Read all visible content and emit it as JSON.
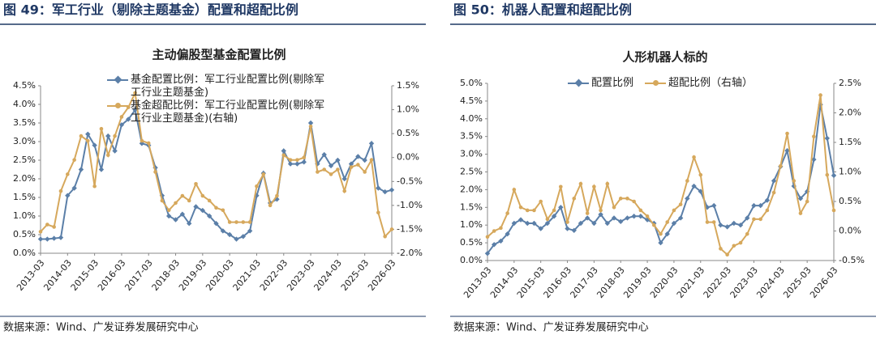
{
  "chart_data": [
    {
      "type": "line",
      "figure_title": "图 49：军工行业（剔除主题基金）配置和超配比例",
      "title": "主动偏股型基金配置比例",
      "source": "数据来源：Wind、广发证券发展研究中心",
      "categories": [
        "2013-03",
        null,
        null,
        null,
        "2014-03",
        null,
        null,
        null,
        "2015-03",
        null,
        null,
        null,
        "2016-03",
        null,
        null,
        null,
        "2017-03",
        null,
        null,
        null,
        "2018-03",
        null,
        null,
        null,
        "2019-03",
        null,
        null,
        null,
        "2020-03",
        null,
        null,
        null,
        "2021-03",
        null,
        null,
        null,
        "2022-03",
        null,
        null,
        null,
        "2023-03",
        null,
        null,
        null,
        "2024-03",
        null,
        null,
        null,
        "2025-03",
        null,
        null,
        null,
        "2026-03"
      ],
      "series": [
        {
          "name": "基金配置比例：军工行业配置比例(剔除军工行业主题基金)",
          "color": "#5b7fa8",
          "marker": "diamond",
          "values": [
            0.38,
            0.38,
            0.4,
            0.42,
            1.55,
            1.75,
            2.25,
            3.2,
            2.9,
            2.25,
            3.15,
            2.75,
            3.45,
            3.6,
            3.85,
            2.95,
            2.9,
            2.3,
            1.55,
            1.0,
            0.9,
            1.05,
            0.8,
            1.25,
            1.15,
            1.0,
            0.8,
            0.6,
            0.5,
            0.38,
            0.45,
            0.6,
            1.55,
            2.15,
            1.35,
            1.45,
            2.75,
            2.4,
            2.4,
            2.45,
            3.5,
            2.4,
            2.65,
            2.35,
            2.5,
            2.0,
            2.4,
            2.6,
            2.5,
            2.95,
            1.75,
            1.65,
            1.7
          ]
        },
        {
          "name": "基金超配比例：军工行业配置比例(剔除军工行业主题基金)(右轴)",
          "color": "#d6a85c",
          "marker": "circle",
          "axis": "y2",
          "values": [
            -1.55,
            -1.4,
            -1.45,
            -0.7,
            -0.35,
            -0.05,
            0.45,
            0.35,
            -0.6,
            0.6,
            0.05,
            0.45,
            0.85,
            1.05,
            1.35,
            0.35,
            0.3,
            -0.3,
            -0.9,
            -1.1,
            -0.95,
            -0.8,
            -0.9,
            -0.55,
            -0.8,
            -0.9,
            -1.05,
            -1.1,
            -1.35,
            -1.35,
            -1.35,
            -1.35,
            -0.6,
            -0.35,
            -1.0,
            -0.8,
            0.05,
            -0.05,
            -0.05,
            0.0,
            0.65,
            -0.3,
            -0.25,
            -0.35,
            -0.25,
            -0.7,
            -0.2,
            -0.15,
            -0.3,
            -0.05,
            -1.15,
            -1.65,
            -1.5
          ]
        }
      ],
      "ylim": [
        0,
        4.5
      ],
      "yticks": [
        {
          "value": 0,
          "label": "0.0%"
        },
        {
          "value": 0.5,
          "label": "0.5%"
        },
        {
          "value": 1,
          "label": "1.0%"
        },
        {
          "value": 1.5,
          "label": "1.5%"
        },
        {
          "value": 2,
          "label": "2.0%"
        },
        {
          "value": 2.5,
          "label": "2.5%"
        },
        {
          "value": 3,
          "label": "3.0%"
        },
        {
          "value": 3.5,
          "label": "3.5%"
        },
        {
          "value": 4,
          "label": "4.0%"
        },
        {
          "value": 4.5,
          "label": "4.5%"
        }
      ],
      "y2lim": [
        -2,
        1.5
      ],
      "y2ticks": [
        {
          "value": -2,
          "label": "-2.0%"
        },
        {
          "value": -1.5,
          "label": "-1.5%"
        },
        {
          "value": -1,
          "label": "-1.0%"
        },
        {
          "value": -0.5,
          "label": "-0.5%"
        },
        {
          "value": 0,
          "label": "0.0%"
        },
        {
          "value": 0.5,
          "label": "0.5%"
        },
        {
          "value": 1,
          "label": "1.0%"
        },
        {
          "value": 1.5,
          "label": "1.5%"
        }
      ],
      "legend": "upper-left-stacked"
    },
    {
      "type": "line",
      "figure_title": "图 50：机器人配置和超配比例",
      "title": "人形机器人标的",
      "source": "数据来源：Wind、广发证券发展研究中心",
      "categories": [
        "2013-03",
        null,
        null,
        null,
        "2014-03",
        null,
        null,
        null,
        "2015-03",
        null,
        null,
        null,
        "2016-03",
        null,
        null,
        null,
        "2017-03",
        null,
        null,
        null,
        "2018-03",
        null,
        null,
        null,
        "2019-03",
        null,
        null,
        null,
        "2020-03",
        null,
        null,
        null,
        "2021-03",
        null,
        null,
        null,
        "2022-03",
        null,
        null,
        null,
        "2023-03",
        null,
        null,
        null,
        "2024-03",
        null,
        null,
        null,
        "2025-03",
        null,
        null,
        null,
        "2026-03"
      ],
      "series": [
        {
          "name": "配置比例",
          "color": "#5b7fa8",
          "marker": "diamond",
          "values": [
            0.2,
            0.45,
            0.55,
            0.75,
            1.05,
            1.15,
            1.05,
            1.05,
            0.9,
            1.05,
            1.25,
            1.5,
            0.9,
            0.85,
            1.05,
            1.2,
            1.05,
            1.3,
            1.05,
            1.2,
            1.1,
            1.2,
            1.25,
            1.25,
            1.15,
            1.05,
            0.5,
            0.75,
            1.05,
            1.2,
            1.75,
            2.1,
            1.95,
            1.5,
            1.55,
            1.0,
            0.95,
            1.05,
            1.0,
            1.2,
            1.55,
            1.55,
            1.7,
            2.25,
            2.65,
            3.1,
            2.1,
            1.75,
            1.95,
            2.85,
            4.4,
            3.45,
            2.4
          ]
        },
        {
          "name": "超配比例（右轴）",
          "color": "#d6a85c",
          "marker": "circle",
          "axis": "y2",
          "values": [
            -0.1,
            0.0,
            0.05,
            0.3,
            0.7,
            0.4,
            0.35,
            0.35,
            0.5,
            0.2,
            0.35,
            0.75,
            0.15,
            0.55,
            0.8,
            0.3,
            0.75,
            0.35,
            0.8,
            0.4,
            0.55,
            0.55,
            0.5,
            0.35,
            0.25,
            0.1,
            -0.05,
            0.15,
            0.35,
            0.45,
            0.85,
            1.25,
            0.95,
            0.15,
            0.15,
            -0.3,
            -0.4,
            -0.25,
            -0.2,
            -0.05,
            0.2,
            0.2,
            0.35,
            0.65,
            1.1,
            1.65,
            0.85,
            0.3,
            0.5,
            1.6,
            2.3,
            0.95,
            0.35
          ]
        }
      ],
      "ylim": [
        0,
        5
      ],
      "yticks": [
        {
          "value": 0,
          "label": "0.0%"
        },
        {
          "value": 0.5,
          "label": "0.5%"
        },
        {
          "value": 1,
          "label": "1.0%"
        },
        {
          "value": 1.5,
          "label": "1.5%"
        },
        {
          "value": 2,
          "label": "2.0%"
        },
        {
          "value": 2.5,
          "label": "2.5%"
        },
        {
          "value": 3,
          "label": "3.0%"
        },
        {
          "value": 3.5,
          "label": "3.5%"
        },
        {
          "value": 4,
          "label": "4.0%"
        },
        {
          "value": 4.5,
          "label": "4.5%"
        },
        {
          "value": 5,
          "label": "5.0%"
        }
      ],
      "y2lim": [
        -0.5,
        2.5
      ],
      "y2ticks": [
        {
          "value": -0.5,
          "label": "-0.5%"
        },
        {
          "value": 0,
          "label": "0.0%"
        },
        {
          "value": 0.5,
          "label": "0.5%"
        },
        {
          "value": 1,
          "label": "1.0%"
        },
        {
          "value": 1.5,
          "label": "1.5%"
        },
        {
          "value": 2,
          "label": "2.0%"
        },
        {
          "value": 2.5,
          "label": "2.5%"
        }
      ],
      "legend": "upper-center-row"
    }
  ]
}
